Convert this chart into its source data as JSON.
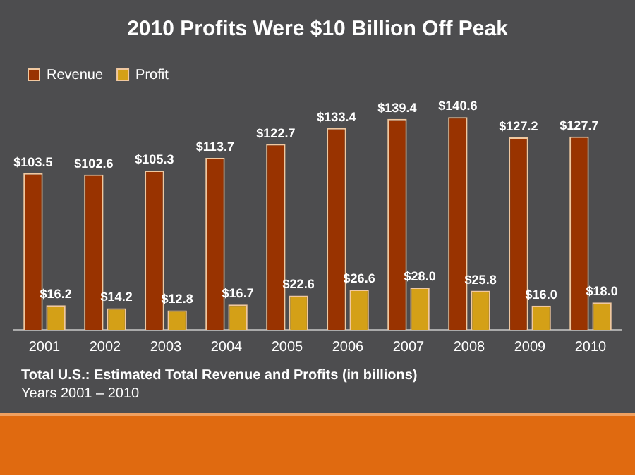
{
  "chart_data": {
    "type": "bar",
    "title": "2010 Profits Were $10 Billion Off Peak",
    "categories": [
      "2001",
      "2002",
      "2003",
      "2004",
      "2005",
      "2006",
      "2007",
      "2008",
      "2009",
      "2010"
    ],
    "series": [
      {
        "name": "Revenue",
        "color": "#993300",
        "values": [
          103.5,
          102.6,
          105.3,
          113.7,
          122.7,
          133.4,
          139.4,
          140.6,
          127.2,
          127.7
        ],
        "value_labels": [
          "$103.5",
          "$102.6",
          "$105.3",
          "$113.7",
          "$122.7",
          "$133.4",
          "$139.4",
          "$140.6",
          "$127.2",
          "$127.7"
        ]
      },
      {
        "name": "Profit",
        "color": "#d4a017",
        "values": [
          16.2,
          14.2,
          12.8,
          16.7,
          22.6,
          26.6,
          28.0,
          25.8,
          16.0,
          18.0
        ],
        "value_labels": [
          "$16.2",
          "$14.2",
          "$12.8",
          "$16.7",
          "$22.6",
          "$26.6",
          "$28.0",
          "$25.8",
          "$16.0",
          "$18.0"
        ]
      }
    ],
    "grid": false,
    "legend": "top left",
    "annotations": [
      "Total U.S.: Estimated Total Revenue and Profits (in billions)",
      "Years 2001 – 2010"
    ]
  }
}
